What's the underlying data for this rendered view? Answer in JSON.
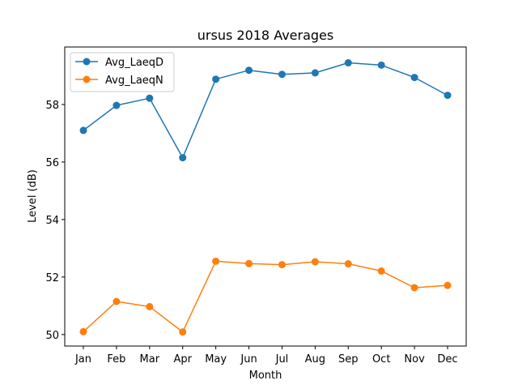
{
  "chart_data": {
    "type": "line",
    "title": "ursus 2018 Averages",
    "xlabel": "Month",
    "ylabel": "Level (dB)",
    "categories": [
      "Jan",
      "Feb",
      "Mar",
      "Apr",
      "May",
      "Jun",
      "Jul",
      "Aug",
      "Sep",
      "Oct",
      "Nov",
      "Dec"
    ],
    "ylim": [
      49.6,
      60.0
    ],
    "yticks": [
      50,
      52,
      54,
      56,
      58
    ],
    "legend_position": "top-left",
    "grid": false,
    "series": [
      {
        "name": "Avg_LaeqD",
        "color": "#1f77b4",
        "values": [
          57.1,
          57.97,
          58.22,
          56.15,
          58.88,
          59.19,
          59.05,
          59.1,
          59.45,
          59.37,
          58.94,
          58.32
        ]
      },
      {
        "name": "Avg_LaeqN",
        "color": "#ff7f0e",
        "values": [
          50.1,
          51.15,
          50.97,
          50.09,
          52.55,
          52.47,
          52.43,
          52.53,
          52.46,
          52.21,
          51.63,
          51.71
        ]
      }
    ]
  }
}
